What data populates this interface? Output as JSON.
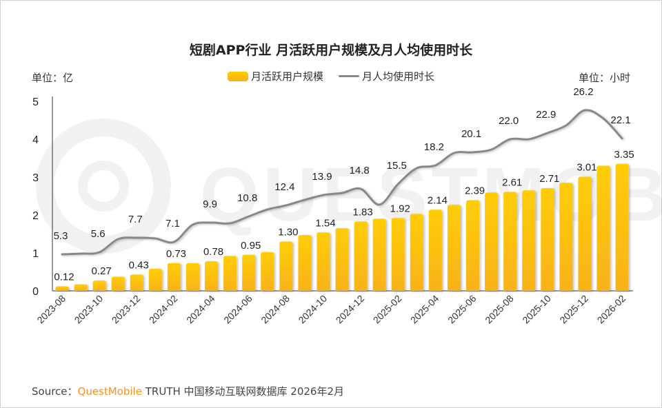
{
  "chart_data": {
    "type": "bar+line",
    "title": "短剧APP行业 月活跃用户规模及月人均使用时长",
    "left_unit": "单位：亿",
    "right_unit": "单位：小时",
    "legend_placement": "top",
    "grid": false,
    "categories": [
      "2023-08",
      "2023-09",
      "2023-10",
      "2023-11",
      "2023-12",
      "2024-01",
      "2024-02",
      "2024-03",
      "2024-04",
      "2024-05",
      "2024-06",
      "2024-07",
      "2024-08",
      "2024-09",
      "2024-10",
      "2024-11",
      "2024-12",
      "2025-01",
      "2025-02",
      "2025-03",
      "2025-04",
      "2025-05",
      "2025-06",
      "2025-07",
      "2025-08",
      "2025-09",
      "2025-10",
      "2025-11",
      "2025-12",
      "2026-01",
      "2026-02"
    ],
    "tick_labels": [
      "2023-08",
      "2023-10",
      "2023-12",
      "2024-02",
      "2024-04",
      "2024-06",
      "2024-08",
      "2024-10",
      "2024-12",
      "2025-02",
      "2025-04",
      "2025-06",
      "2025-08",
      "2025-10",
      "2025-12",
      "2026-02"
    ],
    "y_ticks": [
      "0",
      "1",
      "2",
      "3",
      "4",
      "5"
    ],
    "ylim": [
      0,
      5
    ],
    "y2lim": [
      0,
      27.5
    ],
    "series": [
      {
        "name": "月活跃用户规模",
        "type": "bar",
        "color": "#ffc20e",
        "values": [
          0.12,
          0.17,
          0.27,
          0.37,
          0.43,
          0.58,
          0.73,
          0.73,
          0.78,
          0.92,
          0.95,
          1.02,
          1.3,
          1.47,
          1.54,
          1.65,
          1.83,
          1.9,
          1.92,
          2.03,
          2.14,
          2.27,
          2.39,
          2.59,
          2.61,
          2.65,
          2.71,
          2.85,
          3.01,
          3.3,
          3.35
        ],
        "labels": [
          "0.12",
          "",
          "0.27",
          "",
          "0.43",
          "",
          "0.73",
          "",
          "0.78",
          "",
          "0.95",
          "",
          "1.30",
          "",
          "1.54",
          "",
          "1.83",
          "",
          "1.92",
          "",
          "2.14",
          "",
          "2.39",
          "",
          "2.61",
          "",
          "2.71",
          "",
          "3.01",
          "",
          "3.35"
        ]
      },
      {
        "name": "月人均使用时长",
        "type": "line",
        "color": "#888888",
        "values": [
          5.3,
          5.4,
          5.6,
          7.5,
          7.7,
          7.6,
          7.1,
          9.6,
          9.9,
          9.8,
          10.8,
          11.8,
          12.4,
          13.2,
          13.9,
          14.2,
          14.8,
          12.5,
          15.5,
          17.8,
          18.2,
          20.0,
          20.1,
          20.5,
          22.0,
          22.0,
          22.9,
          24.0,
          26.2,
          25.0,
          22.1
        ],
        "labels": [
          "5.3",
          "",
          "5.6",
          "",
          "7.7",
          "",
          "7.1",
          "",
          "9.9",
          "",
          "10.8",
          "",
          "12.4",
          "",
          "13.9",
          "",
          "14.8",
          "",
          "15.5",
          "",
          "18.2",
          "",
          "20.1",
          "",
          "22.0",
          "",
          "22.9",
          "",
          "26.2",
          "",
          "22.1"
        ]
      }
    ]
  },
  "source": {
    "prefix": "Source：",
    "brand": "QuestMobile",
    "rest": " TRUTH 中国移动互联网数据库 2026年2月"
  },
  "watermark": "QUESTMOBILE"
}
